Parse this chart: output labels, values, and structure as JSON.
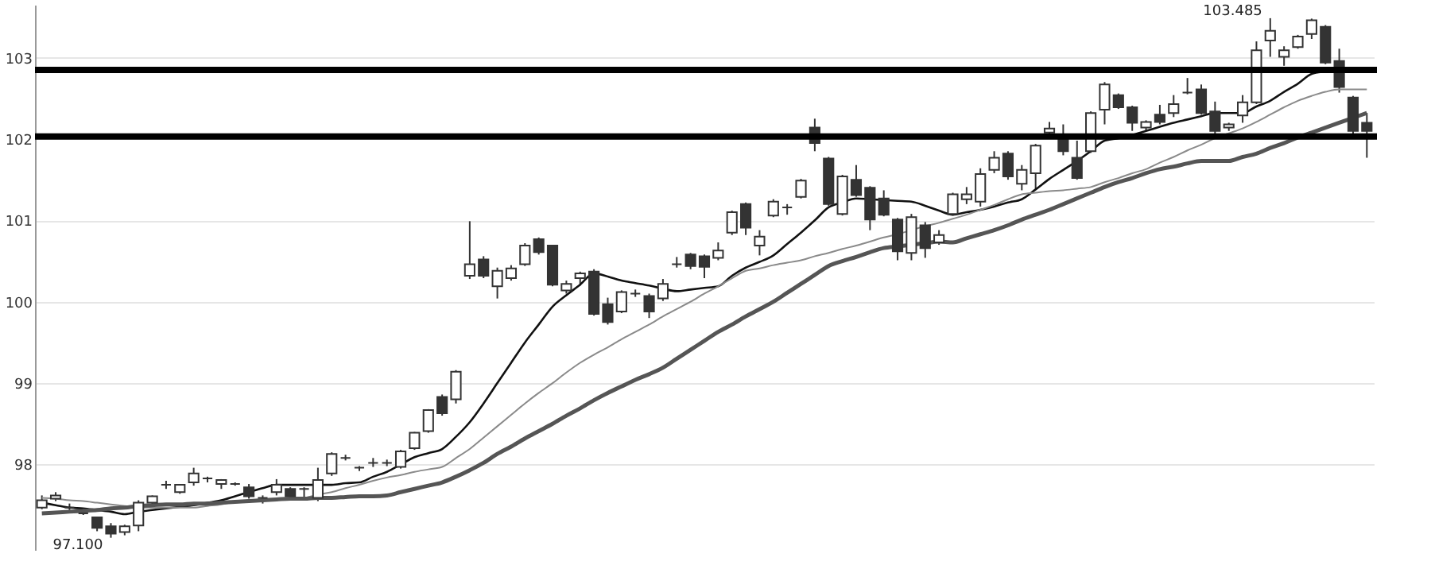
{
  "chart_data": {
    "type": "candlestick",
    "categories": [
      null,
      null,
      null,
      null,
      null,
      null,
      null,
      null,
      null,
      null,
      null,
      null,
      null,
      null,
      null,
      null,
      null,
      null,
      null,
      null,
      null,
      null,
      null,
      null,
      null,
      null,
      null,
      null,
      null,
      null,
      null,
      null,
      null,
      null,
      null,
      null,
      null,
      null,
      null,
      null,
      null,
      null,
      null,
      null,
      null,
      null,
      null,
      null,
      null,
      null,
      null,
      null,
      null,
      null,
      null,
      null,
      null,
      null,
      null,
      null,
      null,
      null,
      null,
      null,
      null,
      null,
      null,
      null,
      null,
      null,
      null,
      null,
      null,
      null,
      null,
      null,
      null,
      null,
      null,
      null,
      null,
      null,
      null,
      null,
      null,
      null,
      null,
      null,
      null,
      null,
      null,
      null,
      null,
      null,
      null,
      null,
      null
    ],
    "ohlc": [
      [
        97.47,
        97.62,
        97.45,
        97.56
      ],
      [
        97.58,
        97.66,
        97.55,
        97.62
      ],
      [
        97.47,
        97.52,
        97.44,
        97.47
      ],
      [
        97.4,
        97.42,
        97.38,
        97.4
      ],
      [
        97.35,
        97.36,
        97.18,
        97.22
      ],
      [
        97.24,
        97.28,
        97.1,
        97.15
      ],
      [
        97.17,
        97.26,
        97.13,
        97.24
      ],
      [
        97.25,
        97.56,
        97.18,
        97.53
      ],
      [
        97.53,
        97.62,
        97.5,
        97.61
      ],
      [
        97.75,
        97.8,
        97.7,
        97.75
      ],
      [
        97.66,
        97.76,
        97.64,
        97.75
      ],
      [
        97.78,
        97.96,
        97.74,
        97.89
      ],
      [
        97.83,
        97.85,
        97.78,
        97.83
      ],
      [
        97.76,
        97.82,
        97.7,
        97.81
      ],
      [
        97.76,
        97.78,
        97.74,
        97.76
      ],
      [
        97.72,
        97.76,
        97.58,
        97.61
      ],
      [
        97.59,
        97.62,
        97.52,
        97.59
      ],
      [
        97.66,
        97.82,
        97.62,
        97.75
      ],
      [
        97.7,
        97.72,
        97.58,
        97.61
      ],
      [
        97.7,
        97.72,
        97.6,
        97.7
      ],
      [
        97.59,
        97.96,
        97.55,
        97.81
      ],
      [
        97.89,
        98.15,
        97.86,
        98.13
      ],
      [
        98.08,
        98.12,
        98.05,
        98.08
      ],
      [
        97.96,
        97.98,
        97.92,
        97.96
      ],
      [
        98.02,
        98.08,
        97.97,
        98.02
      ],
      [
        98.02,
        98.06,
        97.98,
        98.02
      ],
      [
        97.97,
        98.18,
        97.95,
        98.16
      ],
      [
        98.2,
        98.4,
        98.18,
        98.39
      ],
      [
        98.41,
        98.68,
        98.39,
        98.67
      ],
      [
        98.83,
        98.86,
        98.6,
        98.63
      ],
      [
        98.8,
        99.16,
        98.75,
        99.14
      ],
      [
        100.32,
        100.99,
        100.28,
        100.46
      ],
      [
        100.52,
        100.56,
        100.29,
        100.32
      ],
      [
        100.19,
        100.42,
        100.04,
        100.38
      ],
      [
        100.29,
        100.45,
        100.26,
        100.41
      ],
      [
        100.46,
        100.72,
        100.44,
        100.69
      ],
      [
        100.77,
        100.79,
        100.58,
        100.61
      ],
      [
        100.69,
        100.7,
        100.19,
        100.21
      ],
      [
        100.14,
        100.26,
        100.1,
        100.22
      ],
      [
        100.29,
        100.37,
        100.2,
        100.35
      ],
      [
        100.37,
        100.4,
        99.83,
        99.85
      ],
      [
        99.97,
        100.05,
        99.72,
        99.75
      ],
      [
        99.88,
        100.14,
        99.86,
        100.12
      ],
      [
        100.1,
        100.15,
        100.06,
        100.1
      ],
      [
        100.07,
        100.1,
        99.8,
        99.88
      ],
      [
        100.04,
        100.28,
        100.01,
        100.22
      ],
      [
        100.46,
        100.55,
        100.42,
        100.46
      ],
      [
        100.58,
        100.6,
        100.4,
        100.44
      ],
      [
        100.56,
        100.58,
        100.29,
        100.43
      ],
      [
        100.54,
        100.73,
        100.51,
        100.63
      ],
      [
        100.85,
        101.12,
        100.82,
        101.1
      ],
      [
        101.2,
        101.22,
        100.82,
        100.91
      ],
      [
        100.69,
        100.88,
        100.57,
        100.8
      ],
      [
        101.06,
        101.26,
        101.04,
        101.23
      ],
      [
        101.16,
        101.2,
        101.07,
        101.16
      ],
      [
        101.29,
        101.51,
        101.27,
        101.49
      ],
      [
        102.14,
        102.25,
        101.85,
        101.95
      ],
      [
        101.76,
        101.78,
        101.18,
        101.2
      ],
      [
        101.08,
        101.56,
        101.06,
        101.54
      ],
      [
        101.5,
        101.68,
        101.29,
        101.31
      ],
      [
        101.4,
        101.42,
        100.88,
        101.01
      ],
      [
        101.27,
        101.37,
        101.05,
        101.07
      ],
      [
        101.01,
        101.03,
        100.51,
        100.62
      ],
      [
        100.6,
        101.08,
        100.51,
        101.04
      ],
      [
        100.94,
        100.98,
        100.54,
        100.66
      ],
      [
        100.73,
        100.88,
        100.7,
        100.82
      ],
      [
        101.08,
        101.34,
        101.06,
        101.32
      ],
      [
        101.26,
        101.41,
        101.2,
        101.32
      ],
      [
        101.23,
        101.64,
        101.17,
        101.57
      ],
      [
        101.62,
        101.85,
        101.58,
        101.77
      ],
      [
        101.82,
        101.85,
        101.5,
        101.54
      ],
      [
        101.45,
        101.68,
        101.37,
        101.62
      ],
      [
        101.58,
        101.94,
        101.39,
        101.92
      ],
      [
        102.08,
        102.21,
        102.04,
        102.13
      ],
      [
        102.04,
        102.18,
        101.8,
        101.85
      ],
      [
        101.77,
        101.98,
        101.5,
        101.52
      ],
      [
        101.85,
        102.34,
        101.83,
        102.32
      ],
      [
        102.36,
        102.7,
        102.18,
        102.67
      ],
      [
        102.54,
        102.56,
        102.37,
        102.39
      ],
      [
        102.39,
        102.41,
        102.1,
        102.2
      ],
      [
        102.14,
        102.23,
        102.1,
        102.21
      ],
      [
        102.3,
        102.42,
        102.18,
        102.21
      ],
      [
        102.32,
        102.54,
        102.27,
        102.43
      ],
      [
        102.57,
        102.75,
        102.55,
        102.57
      ],
      [
        102.61,
        102.67,
        102.3,
        102.32
      ],
      [
        102.34,
        102.46,
        102.06,
        102.1
      ],
      [
        102.14,
        102.2,
        102.1,
        102.18
      ],
      [
        102.29,
        102.54,
        102.2,
        102.45
      ],
      [
        102.45,
        103.2,
        102.43,
        103.09
      ],
      [
        103.21,
        103.485,
        103.01,
        103.33
      ],
      [
        103.01,
        103.14,
        102.9,
        103.09
      ],
      [
        103.13,
        103.28,
        103.11,
        103.26
      ],
      [
        103.29,
        103.48,
        103.23,
        103.46
      ],
      [
        103.38,
        103.4,
        102.92,
        102.94
      ],
      [
        102.96,
        103.11,
        102.57,
        102.64
      ],
      [
        102.51,
        102.53,
        102.05,
        102.1
      ],
      [
        102.2,
        102.32,
        101.77,
        102.1
      ]
    ],
    "series": [
      {
        "type": "line",
        "color": "#111111",
        "values": [
          97.53,
          97.5,
          97.47,
          97.46,
          97.44,
          97.42,
          97.39,
          97.42,
          97.44,
          97.46,
          97.48,
          97.5,
          97.53,
          97.56,
          97.61,
          97.66,
          97.71,
          97.75,
          97.75,
          97.75,
          97.75,
          97.75,
          97.77,
          97.78,
          97.85,
          97.91,
          98.0,
          98.09,
          98.14,
          98.19,
          98.34,
          98.52,
          98.75,
          99.0,
          99.25,
          99.5,
          99.72,
          99.94,
          100.08,
          100.21,
          100.35,
          100.31,
          100.26,
          100.23,
          100.2,
          100.16,
          100.13,
          100.15,
          100.17,
          100.19,
          100.32,
          100.42,
          100.49,
          100.57,
          100.71,
          100.85,
          101.0,
          101.16,
          101.22,
          101.27,
          101.26,
          101.25,
          101.24,
          101.23,
          101.18,
          101.12,
          101.07,
          101.1,
          101.13,
          101.17,
          101.22,
          101.26,
          101.38,
          101.51,
          101.62,
          101.73,
          101.85,
          101.98,
          102.01,
          102.05,
          102.1,
          102.15,
          102.2,
          102.24,
          102.28,
          102.32,
          102.32,
          102.32,
          102.4,
          102.47,
          102.58,
          102.68,
          102.8,
          102.83,
          102.85,
          null,
          null
        ]
      },
      {
        "type": "line",
        "color": "#8a8a8a",
        "values": [
          97.59,
          97.58,
          97.56,
          97.55,
          97.53,
          97.51,
          97.49,
          97.47,
          97.47,
          97.47,
          97.47,
          97.47,
          97.49,
          97.51,
          97.54,
          97.56,
          97.57,
          97.58,
          97.58,
          97.59,
          97.63,
          97.66,
          97.71,
          97.75,
          97.8,
          97.84,
          97.87,
          97.91,
          97.94,
          97.97,
          98.08,
          98.19,
          98.33,
          98.47,
          98.61,
          98.75,
          98.88,
          99.0,
          99.13,
          99.25,
          99.35,
          99.44,
          99.54,
          99.63,
          99.72,
          99.82,
          99.91,
          100.0,
          100.1,
          100.19,
          100.29,
          100.38,
          100.41,
          100.45,
          100.48,
          100.51,
          100.56,
          100.6,
          100.65,
          100.69,
          100.74,
          100.79,
          100.83,
          100.88,
          100.93,
          100.97,
          101.02,
          101.07,
          101.13,
          101.19,
          101.26,
          101.32,
          101.34,
          101.36,
          101.37,
          101.39,
          101.41,
          101.47,
          101.52,
          101.58,
          101.63,
          101.71,
          101.78,
          101.86,
          101.93,
          102.01,
          102.07,
          102.13,
          102.21,
          102.3,
          102.39,
          102.47,
          102.53,
          102.58,
          102.61,
          102.61,
          102.61
        ]
      },
      {
        "type": "line",
        "color": "#555555",
        "values": [
          97.4,
          97.41,
          97.42,
          97.43,
          97.44,
          97.46,
          97.47,
          97.49,
          97.5,
          97.51,
          97.51,
          97.52,
          97.52,
          97.53,
          97.54,
          97.55,
          97.56,
          97.57,
          97.58,
          97.58,
          97.59,
          97.59,
          97.6,
          97.61,
          97.61,
          97.62,
          97.66,
          97.7,
          97.74,
          97.78,
          97.85,
          97.93,
          98.02,
          98.13,
          98.22,
          98.32,
          98.41,
          98.5,
          98.6,
          98.69,
          98.79,
          98.88,
          98.96,
          99.04,
          99.11,
          99.19,
          99.3,
          99.41,
          99.52,
          99.63,
          99.72,
          99.82,
          99.91,
          100.0,
          100.11,
          100.22,
          100.33,
          100.44,
          100.5,
          100.55,
          100.61,
          100.66,
          100.68,
          100.7,
          100.72,
          100.74,
          100.73,
          100.78,
          100.83,
          100.88,
          100.94,
          101.01,
          101.07,
          101.13,
          101.2,
          101.27,
          101.34,
          101.41,
          101.47,
          101.52,
          101.58,
          101.63,
          101.66,
          101.7,
          101.73,
          101.73,
          101.73,
          101.78,
          101.82,
          101.89,
          101.95,
          102.02,
          102.08,
          102.14,
          102.2,
          102.26,
          102.32
        ]
      }
    ],
    "ref_lines": [
      {
        "axis": "y",
        "value": 102.03,
        "color": "#000000"
      },
      {
        "axis": "y",
        "value": 102.85,
        "color": "#000000"
      }
    ],
    "annotations": [
      "97.100",
      "103.485"
    ],
    "ylim": [
      96.95,
      103.65
    ],
    "yticks": [
      98,
      99,
      100,
      101,
      102,
      103
    ],
    "grid": "y",
    "tick_labels": "y"
  }
}
